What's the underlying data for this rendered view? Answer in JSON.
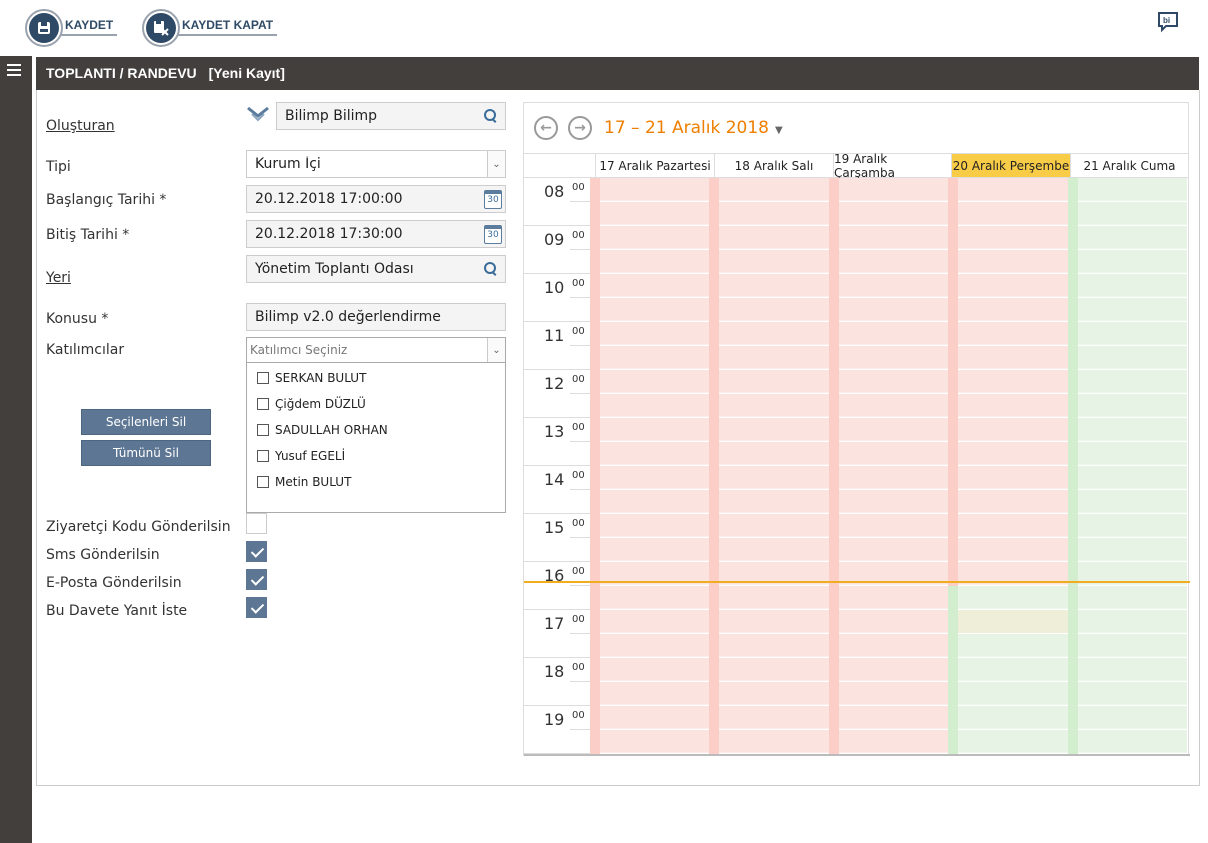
{
  "toolbar": {
    "save_label": "KAYDET",
    "save_close_label": "KAYDET KAPAT",
    "bi_label": "bi"
  },
  "page": {
    "title": "TOPLANTI / RANDEVU",
    "subtitle": "[Yeni Kayıt]"
  },
  "form": {
    "creator": {
      "label": "Oluşturan",
      "value": "Bilimp Bilimp"
    },
    "type": {
      "label": "Tipi",
      "value": "Kurum İçi"
    },
    "start": {
      "label": "Başlangıç Tarihi *",
      "value": "20.12.2018 17:00:00"
    },
    "end": {
      "label": "Bitiş Tarihi *",
      "value": "20.12.2018 17:30:00"
    },
    "place": {
      "label": "Yeri",
      "value": "Yönetim Toplantı Odası"
    },
    "subject": {
      "label": "Konusu *",
      "value": "Bilimp v2.0 değerlendirme"
    },
    "participants": {
      "label": "Katılımcılar",
      "placeholder": "Katılımcı Seçiniz",
      "options": [
        "SERKAN BULUT",
        "Çiğdem DÜZLÜ",
        "SADULLAH ORHAN",
        "Yusuf EGELİ",
        "Metin BULUT"
      ]
    },
    "remove_selected": "Seçilenleri Sil",
    "remove_all": "Tümünü Sil",
    "visitor_code": {
      "label": "Ziyaretçi Kodu Gönderilsin",
      "checked": false
    },
    "sms": {
      "label": "Sms Gönderilsin",
      "checked": true
    },
    "email": {
      "label": "E-Posta Gönderilsin",
      "checked": true
    },
    "reply": {
      "label": "Bu Davete Yanıt İste",
      "checked": true
    }
  },
  "calendar": {
    "range": "17 – 21 Aralık 2018",
    "days": [
      "17 Aralık Pazartesi",
      "18 Aralık Salı",
      "19 Aralık Çarşamba",
      "20 Aralık Perşembe",
      "21 Aralık Cuma"
    ],
    "today_index": 3,
    "hours": [
      "08",
      "09",
      "10",
      "11",
      "12",
      "13",
      "14",
      "15",
      "16",
      "17",
      "18",
      "19"
    ],
    "minute_label": "00",
    "colors": {
      "busy": "#fbe3e0",
      "busy_strip": "#fbcfc7",
      "free": "#e7f4e5",
      "free_strip": "#d3edcf",
      "now": "#f0ad20",
      "accent": "#ee7f00",
      "today": "#f8cc47"
    }
  }
}
